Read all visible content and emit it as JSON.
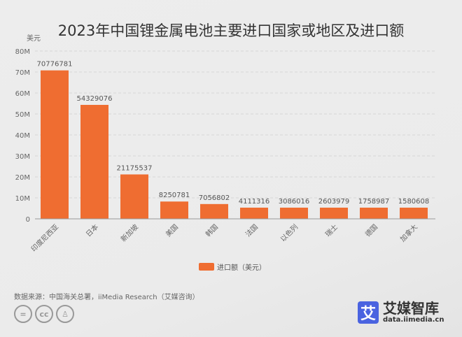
{
  "chart_data": {
    "type": "bar",
    "title": "2023年中国锂金属电池主要进口国家或地区及进口额",
    "ylabel": "美元",
    "ylim": [
      0,
      80000000
    ],
    "yticks": [
      "0",
      "10M",
      "20M",
      "30M",
      "40M",
      "50M",
      "60M",
      "70M",
      "80M"
    ],
    "grid": true,
    "legend_position": "bottom",
    "categories": [
      "印度尼西亚",
      "日本",
      "新加坡",
      "美国",
      "韩国",
      "法国",
      "以色列",
      "瑞士",
      "德国",
      "加拿大"
    ],
    "series": [
      {
        "name": "进口额（美元）",
        "values": [
          70776781,
          54329076,
          21175537,
          8250781,
          7056802,
          4111316,
          3086016,
          2603979,
          1758987,
          1580608
        ],
        "color": "#ef6d31"
      }
    ]
  },
  "footer": {
    "source": "数据来源：中国海关总署，iiMedia Research（艾媒咨询）",
    "license_icons": [
      "nd-icon",
      "cc-icon",
      "by-icon"
    ],
    "logo_mark": "艾",
    "logo_name": "艾媒智库",
    "logo_url": "data.iimedia.cn"
  }
}
